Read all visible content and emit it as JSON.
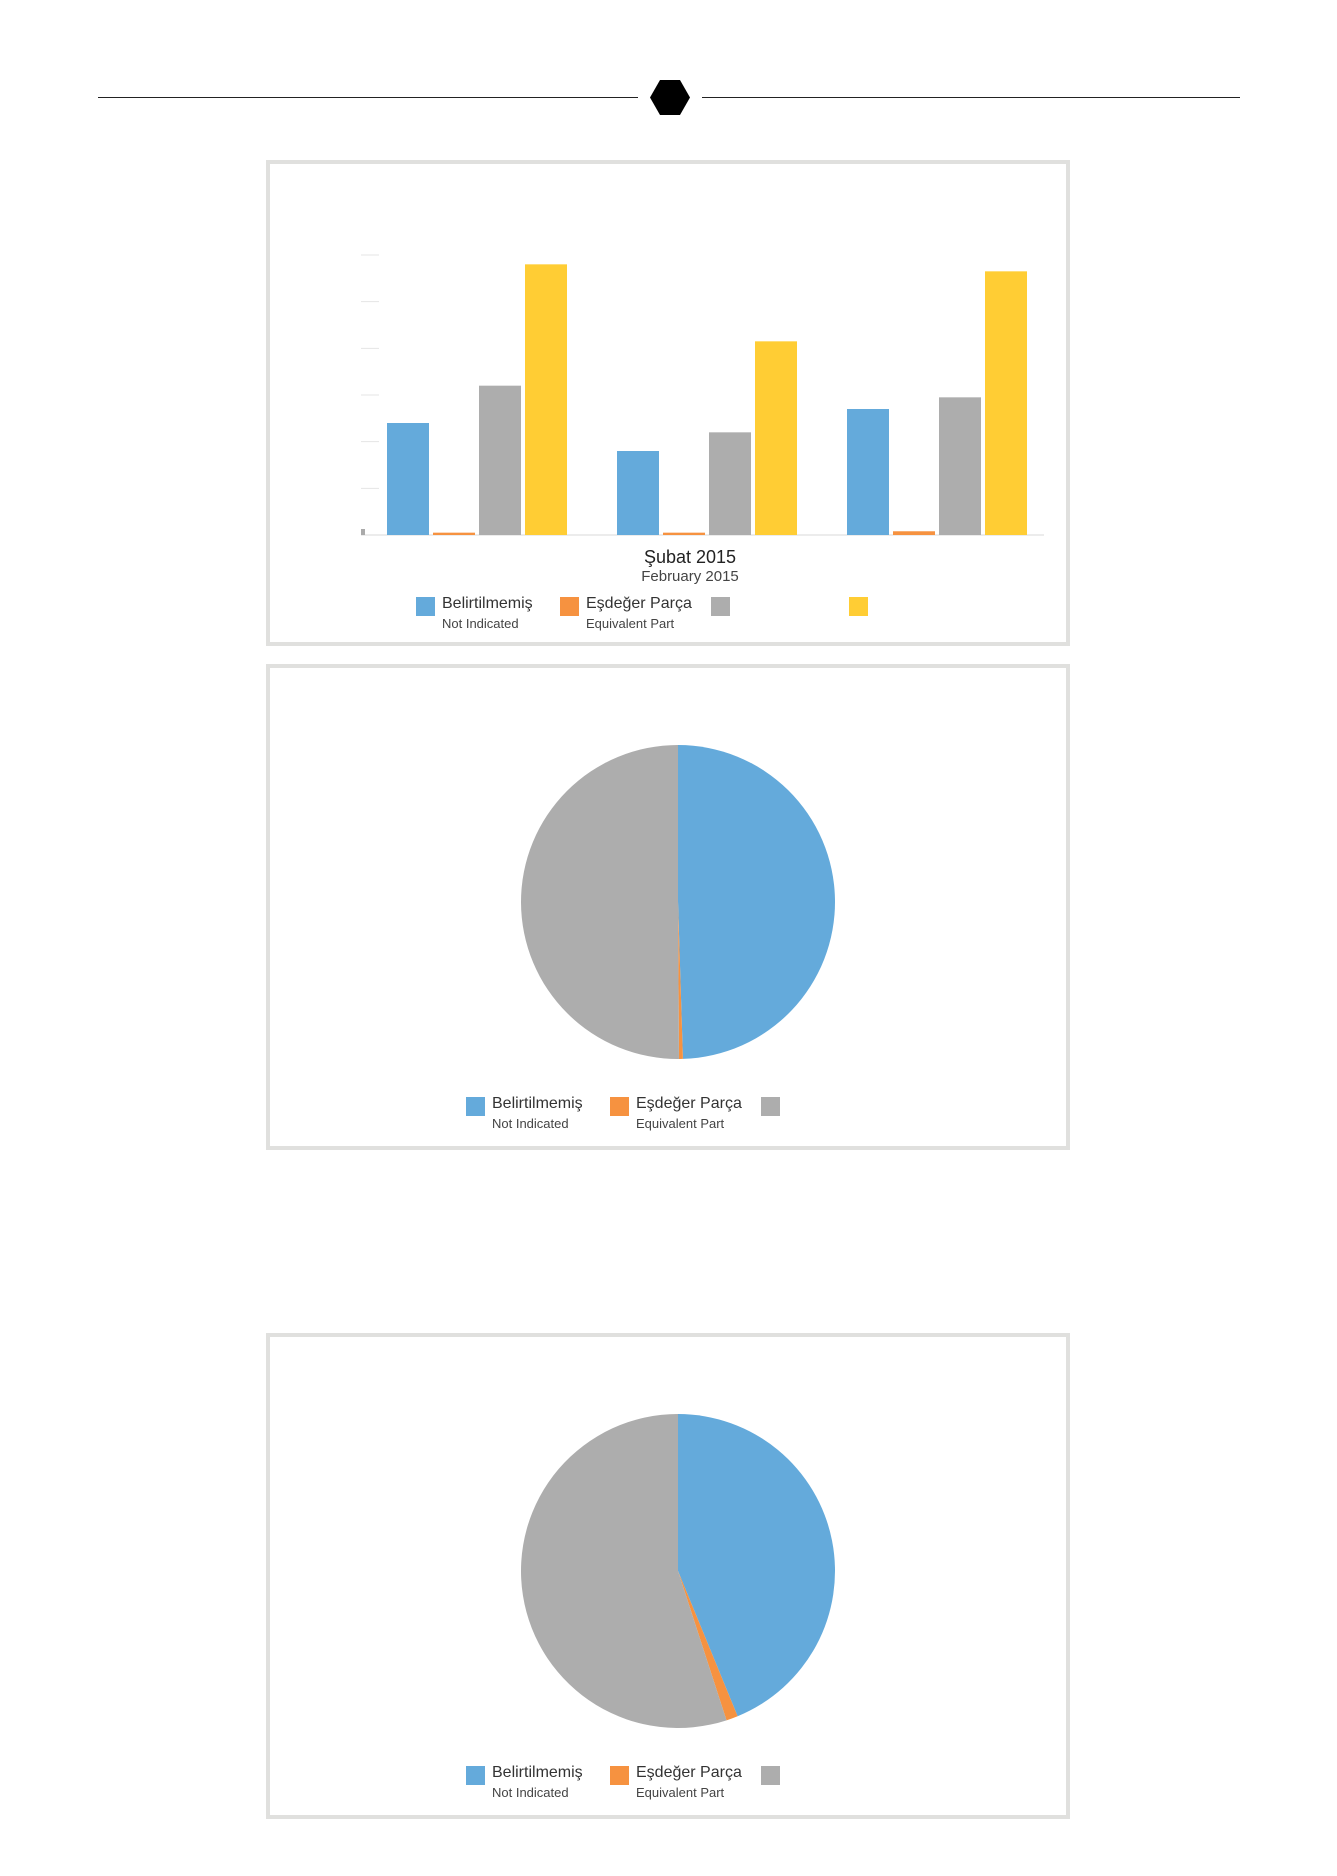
{
  "colors": {
    "blue": "#64aadb",
    "orange": "#f69240",
    "gray": "#adadad",
    "yellow": "#ffcd34"
  },
  "header": {
    "icon": "hexagon-icon"
  },
  "chart_data": [
    {
      "type": "bar",
      "categories": [
        "",
        "",
        ""
      ],
      "series": [
        {
          "name": "Belirtilmemiş / Not Indicated",
          "color": "#64aadb",
          "values": [
            24,
            18,
            27
          ]
        },
        {
          "name": "Eşdeğer Parça / Equivalent Part",
          "color": "#f69240",
          "values": [
            0.5,
            0.5,
            0.8
          ]
        },
        {
          "name": "",
          "color": "#adadad",
          "values": [
            32,
            22,
            29.5
          ]
        },
        {
          "name": "",
          "color": "#ffcd34",
          "values": [
            58,
            41.5,
            56.5
          ]
        }
      ],
      "ylim": [
        0,
        60
      ],
      "title": "",
      "xlabel": "Şubat 2015",
      "xlabel_en": "February 2015",
      "ylabel": "",
      "legend_position": "bottom",
      "legend": [
        {
          "tr": "Belirtilmemiş",
          "en": "Not Indicated",
          "color": "#64aadb"
        },
        {
          "tr": "Eşdeğer Parça",
          "en": "Equivalent Part",
          "color": "#f69240"
        },
        {
          "tr": "",
          "en": "",
          "color": "#adadad"
        },
        {
          "tr": "",
          "en": "",
          "color": "#ffcd34"
        }
      ]
    },
    {
      "type": "pie",
      "slices": [
        {
          "label": "Belirtilmemiş / Not Indicated",
          "value": 49.5,
          "color": "#64aadb"
        },
        {
          "label": "Eşdeğer Parça / Equivalent Part",
          "value": 0.4,
          "color": "#f69240"
        },
        {
          "label": "",
          "value": 50.1,
          "color": "#adadad"
        }
      ],
      "legend_position": "bottom",
      "legend": [
        {
          "tr": "Belirtilmemiş",
          "en": "Not Indicated",
          "color": "#64aadb"
        },
        {
          "tr": "Eşdeğer Parça",
          "en": "Equivalent Part",
          "color": "#f69240"
        },
        {
          "tr": "",
          "en": "",
          "color": "#adadad"
        }
      ]
    },
    {
      "type": "pie",
      "slices": [
        {
          "label": "Belirtilmemiş / Not Indicated",
          "value": 43.8,
          "color": "#64aadb"
        },
        {
          "label": "Eşdeğer Parça / Equivalent Part",
          "value": 1.2,
          "color": "#f69240"
        },
        {
          "label": "",
          "value": 55.0,
          "color": "#adadad"
        }
      ],
      "legend_position": "bottom",
      "legend": [
        {
          "tr": "Belirtilmemiş",
          "en": "Not Indicated",
          "color": "#64aadb"
        },
        {
          "tr": "Eşdeğer Parça",
          "en": "Equivalent Part",
          "color": "#f69240"
        },
        {
          "tr": "",
          "en": "",
          "color": "#adadad"
        }
      ]
    }
  ]
}
